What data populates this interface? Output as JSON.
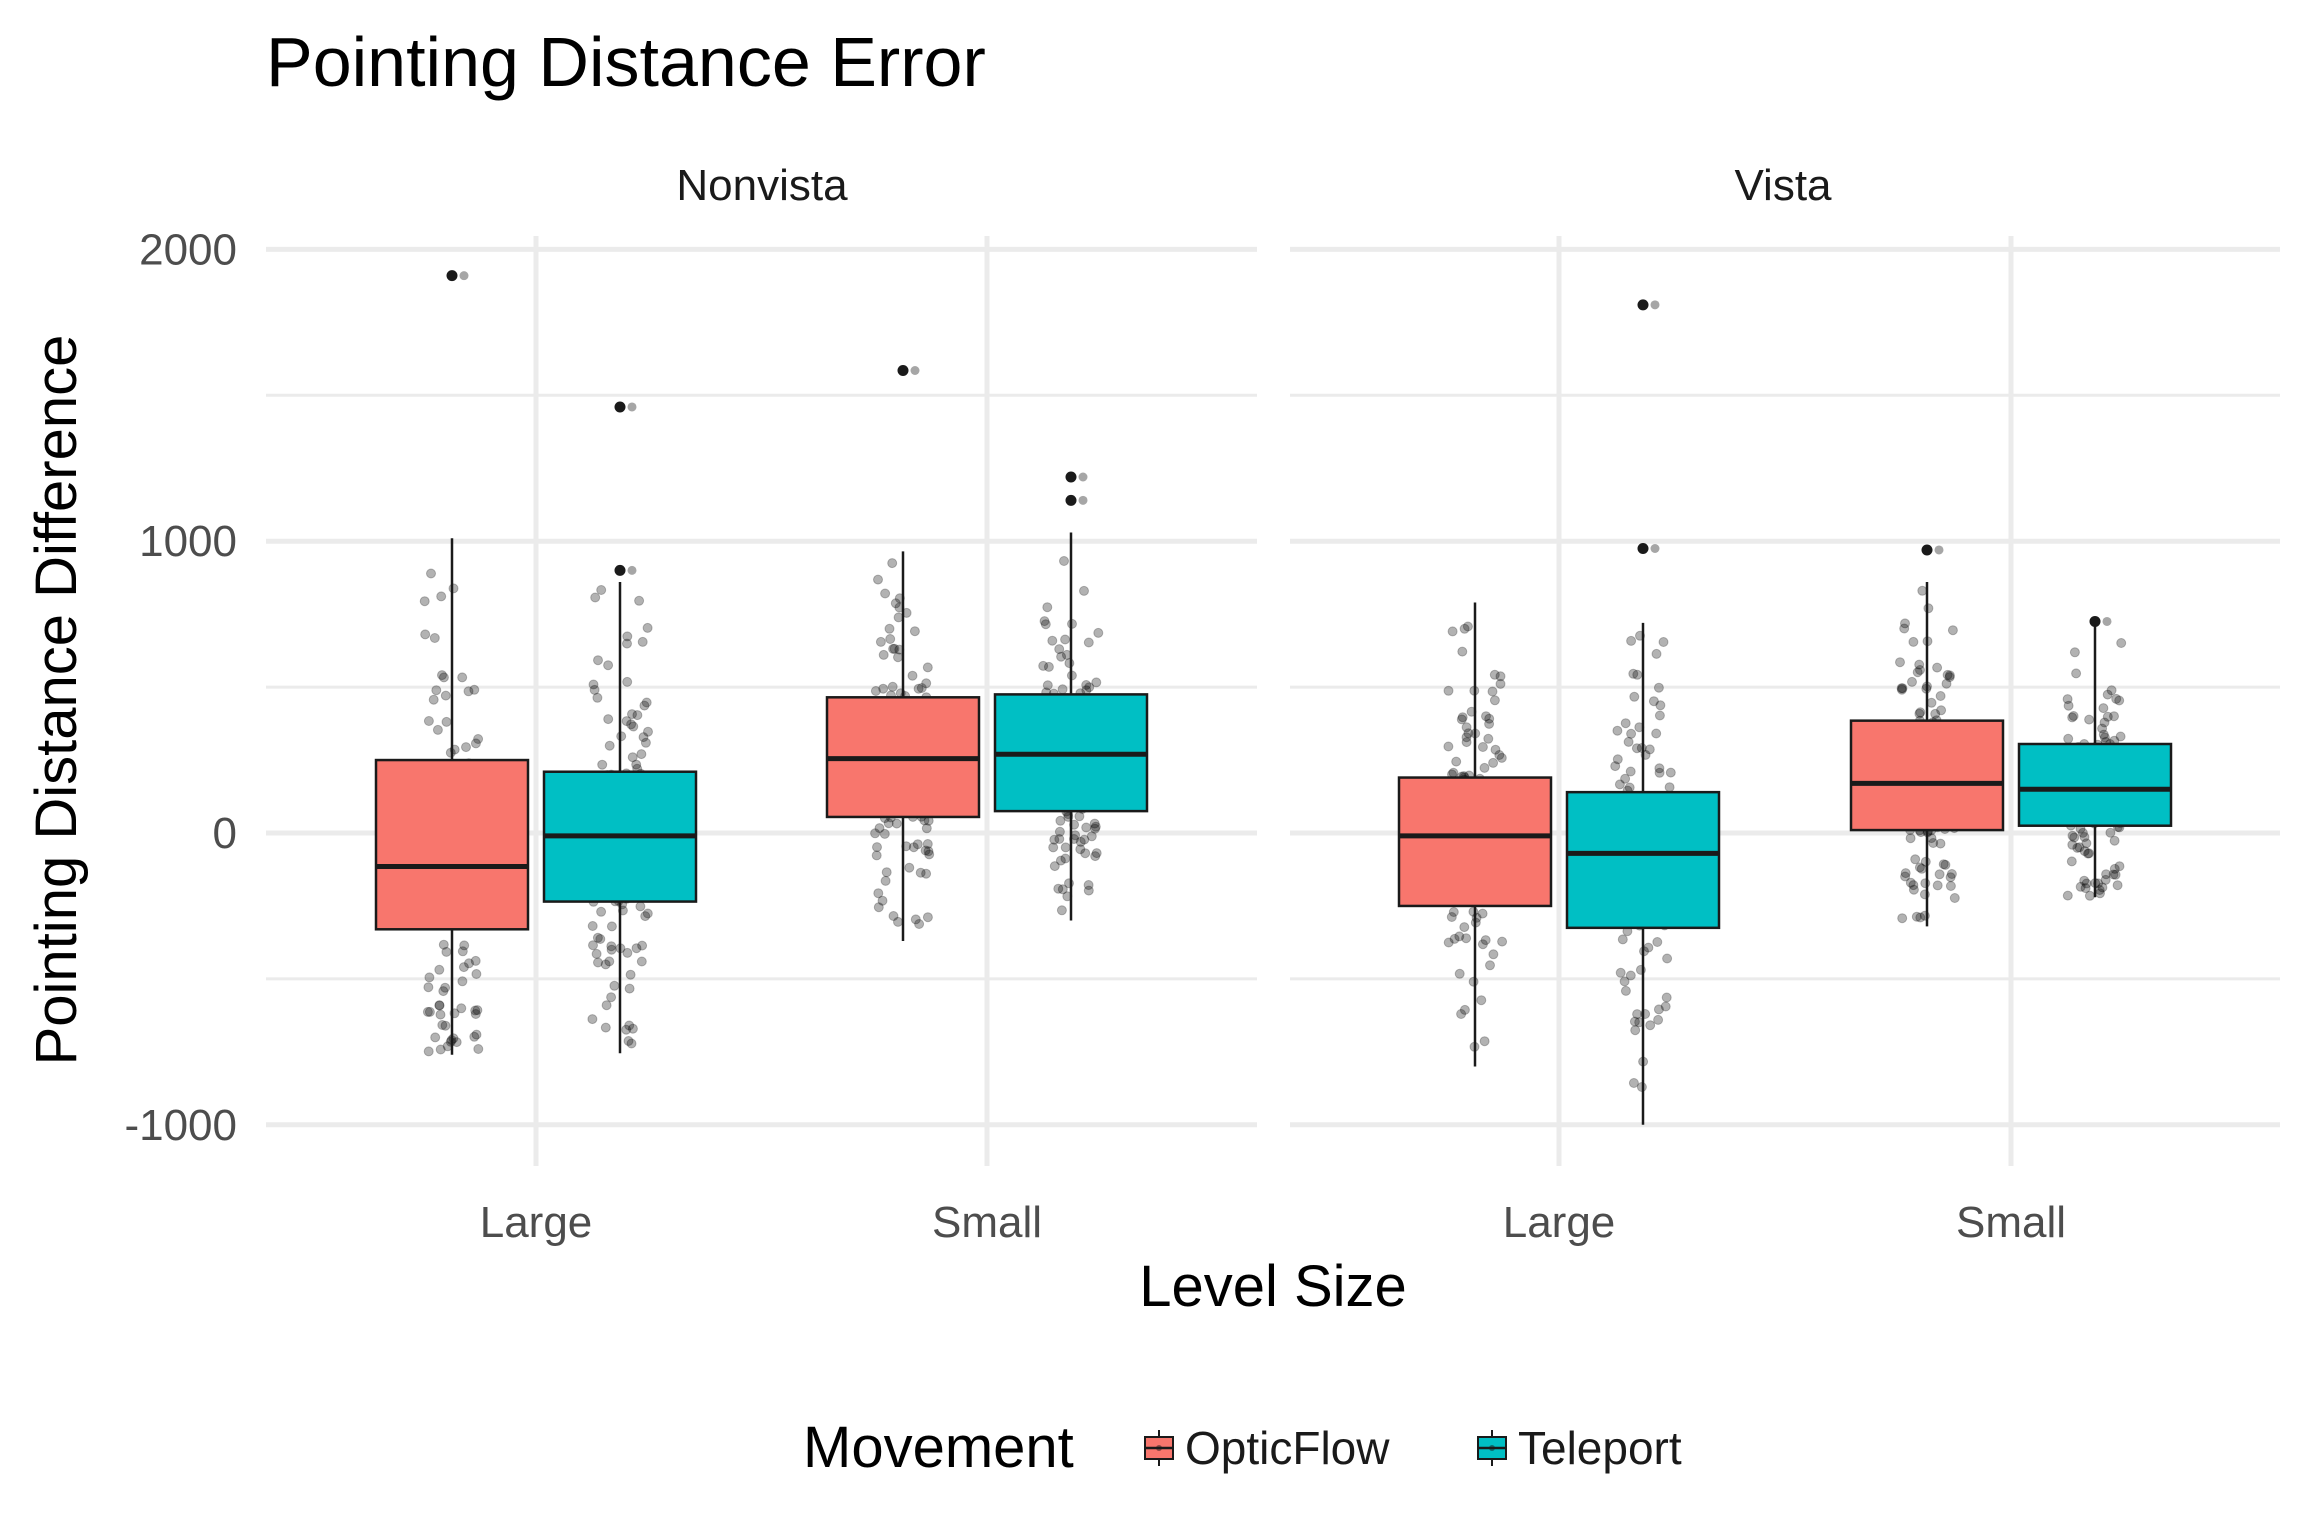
{
  "chart_data": {
    "type": "boxplot",
    "title": "Pointing Distance Error",
    "xlabel": "Level Size",
    "ylabel": "Pointing Distance Difference",
    "ylim": [
      -1000,
      2000
    ],
    "y_ticks": [
      -1000,
      0,
      1000,
      2000
    ],
    "grid": true,
    "facets": [
      "Nonvista",
      "Vista"
    ],
    "categories": [
      "Large",
      "Small"
    ],
    "legend": {
      "title": "Movement",
      "position": "bottom",
      "entries": [
        {
          "name": "OpticFlow",
          "color": "#F8766D"
        },
        {
          "name": "Teleport",
          "color": "#00BFC4"
        }
      ]
    },
    "series": [
      {
        "name": "OpticFlow",
        "color": "#F8766D",
        "boxes": [
          {
            "facet": "Nonvista",
            "category": "Large",
            "whisker_low": -760,
            "q1": -330,
            "median": -115,
            "q3": 250,
            "whisker_high": 1010,
            "outliers": [
              1910
            ]
          },
          {
            "facet": "Nonvista",
            "category": "Small",
            "whisker_low": -370,
            "q1": 55,
            "median": 255,
            "q3": 465,
            "whisker_high": 965,
            "outliers": [
              1585
            ]
          },
          {
            "facet": "Vista",
            "category": "Large",
            "whisker_low": -800,
            "q1": -250,
            "median": -10,
            "q3": 190,
            "whisker_high": 790,
            "outliers": []
          },
          {
            "facet": "Vista",
            "category": "Small",
            "whisker_low": -320,
            "q1": 10,
            "median": 170,
            "q3": 385,
            "whisker_high": 860,
            "outliers": [
              970
            ]
          }
        ]
      },
      {
        "name": "Teleport",
        "color": "#00BFC4",
        "boxes": [
          {
            "facet": "Nonvista",
            "category": "Large",
            "whisker_low": -755,
            "q1": -235,
            "median": -10,
            "q3": 210,
            "whisker_high": 860,
            "outliers": [
              900,
              1460
            ]
          },
          {
            "facet": "Nonvista",
            "category": "Small",
            "whisker_low": -300,
            "q1": 75,
            "median": 270,
            "q3": 475,
            "whisker_high": 1030,
            "outliers": [
              1140,
              1220
            ]
          },
          {
            "facet": "Vista",
            "category": "Large",
            "whisker_low": -1000,
            "q1": -325,
            "median": -70,
            "q3": 140,
            "whisker_high": 720,
            "outliers": [
              975,
              1810
            ]
          },
          {
            "facet": "Vista",
            "category": "Small",
            "whisker_low": -220,
            "q1": 25,
            "median": 150,
            "q3": 305,
            "whisker_high": 710,
            "outliers": [
              725
            ]
          }
        ]
      }
    ]
  }
}
